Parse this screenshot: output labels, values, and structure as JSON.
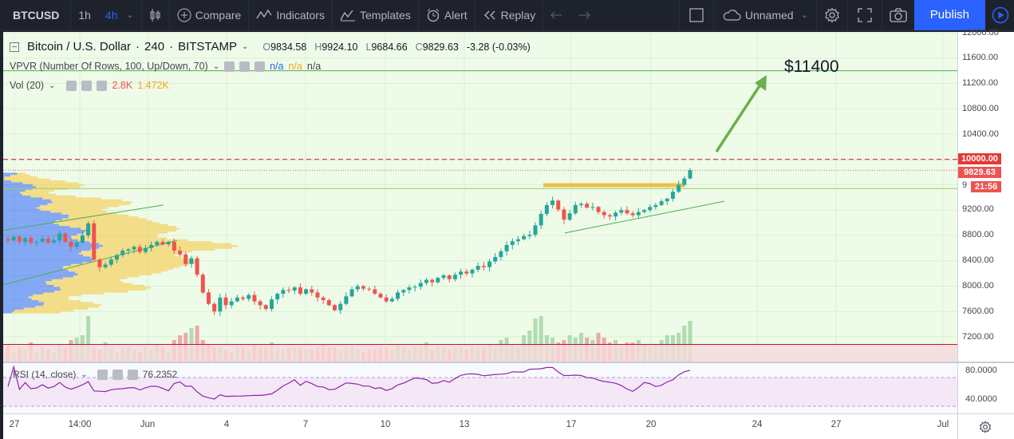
{
  "toolbar": {
    "symbol": "BTCUSD",
    "interval_1h": "1h",
    "interval_4h": "4h",
    "compare": "Compare",
    "indicators": "Indicators",
    "templates": "Templates",
    "alert": "Alert",
    "replay": "Replay",
    "layout_name": "Unnamed",
    "publish": "Publish"
  },
  "legend": {
    "title": "Bitcoin / U.S. Dollar",
    "interval": "240",
    "exchange": "BITSTAMP",
    "open_lbl": "O",
    "open": "9834.58",
    "high_lbl": "H",
    "high": "9924.10",
    "low_lbl": "L",
    "low": "9684.66",
    "close_lbl": "C",
    "close": "9829.63",
    "change": "-3.28 (-0.03%)",
    "vpvr": "VPVR (Number Of Rows, 100, Up/Down, 70)",
    "vpvr_v1": "n/a",
    "vpvr_v2": "n/a",
    "vpvr_v3": "n/a",
    "vol": "Vol (20)",
    "vol_v1": "2.8K",
    "vol_v2": "1.472K",
    "rsi": "RSI (14, close)",
    "rsi_value": "76.2352"
  },
  "price_axis": {
    "labels": [
      "12000.00",
      "11600.00",
      "11200.00",
      "10800.00",
      "10400.00",
      "9200.00",
      "8800.00",
      "8400.00",
      "8000.00",
      "7600.00",
      "7200.00"
    ],
    "tag_level": "10000.00",
    "tag_last": "9829.63",
    "tag_countdown": "21:56",
    "partial": "9"
  },
  "rsi_axis": {
    "labels": [
      "80.0000",
      "40.0000"
    ]
  },
  "time_axis": {
    "labels": [
      "27",
      "14:00",
      "Jun",
      "4",
      "7",
      "10",
      "13",
      "17",
      "20",
      "24",
      "27",
      "Jul"
    ]
  },
  "annotation": {
    "target": "$11400"
  },
  "colors": {
    "up": "#26a69a",
    "down": "#ef5350",
    "chart_bg": "#eefbe8",
    "accent": "#2962ff",
    "level_line": "#c8102e",
    "hline": "#4caf50",
    "arrow": "#6ab04c",
    "rsi": "#8e24aa"
  },
  "icons": {
    "bars": "candlestyle-icon",
    "compare": "plus-circle-icon",
    "indicators": "indicators-icon",
    "templates": "templates-icon",
    "alert": "alarm-clock-icon",
    "replay": "rewind-icon",
    "undo": "undo-icon",
    "redo": "redo-icon",
    "layout": "layout-square-icon",
    "cloud": "cloud-icon",
    "settings": "gear-icon",
    "fullscreen": "fullscreen-icon",
    "snapshot": "camera-icon",
    "play": "play-circle-icon",
    "time_settings": "gear-icon"
  },
  "chart_data": {
    "type": "candlestick",
    "symbol": "BTCUSD",
    "interval": "240",
    "ylim": [
      7000,
      12100
    ],
    "last": {
      "open": 9834.58,
      "high": 9924.1,
      "low": 9684.66,
      "close": 9829.63
    },
    "horizontal_levels": [
      11400,
      10000,
      9829.63,
      9540
    ],
    "projection_target": 11400,
    "rsi_last": 76.2352,
    "rsi_bands": [
      70,
      30
    ],
    "closes": [
      8720,
      8780,
      8700,
      8760,
      8690,
      8700,
      8750,
      8690,
      8720,
      8830,
      8700,
      8620,
      8690,
      8800,
      8990,
      8420,
      8300,
      8340,
      8420,
      8490,
      8560,
      8580,
      8620,
      8540,
      8600,
      8650,
      8700,
      8660,
      8700,
      8560,
      8500,
      8350,
      8440,
      8180,
      7900,
      7720,
      7600,
      7820,
      7700,
      7760,
      7820,
      7800,
      7860,
      7760,
      7700,
      7640,
      7790,
      7880,
      7940,
      7930,
      7980,
      7880,
      7950,
      7900,
      7820,
      7780,
      7700,
      7620,
      7720,
      7840,
      7950,
      8000,
      7960,
      7950,
      7880,
      7820,
      7760,
      7800,
      7900,
      7940,
      7980,
      7990,
      8050,
      8100,
      8060,
      8130,
      8170,
      8110,
      8180,
      8230,
      8200,
      8260,
      8320,
      8300,
      8390,
      8460,
      8550,
      8650,
      8710,
      8740,
      8790,
      8810,
      8960,
      9140,
      9280,
      9350,
      9210,
      9050,
      9150,
      9280,
      9300,
      9240,
      9250,
      9170,
      9120,
      9100,
      9160,
      9200,
      9150,
      9120,
      9170,
      9200,
      9250,
      9280,
      9340,
      9380,
      9490,
      9600,
      9700,
      9830
    ],
    "volumes": [
      0.35,
      0.2,
      0.3,
      0.25,
      0.4,
      0.2,
      0.3,
      0.25,
      0.2,
      0.35,
      0.3,
      0.45,
      0.5,
      0.55,
      0.95,
      0.3,
      0.25,
      0.4,
      0.3,
      0.2,
      0.3,
      0.3,
      0.25,
      0.2,
      0.3,
      0.25,
      0.35,
      0.3,
      0.2,
      0.45,
      0.55,
      0.6,
      0.7,
      0.75,
      0.45,
      0.35,
      0.3,
      0.3,
      0.25,
      0.2,
      0.3,
      0.3,
      0.25,
      0.35,
      0.3,
      0.3,
      0.4,
      0.3,
      0.25,
      0.3,
      0.3,
      0.3,
      0.25,
      0.25,
      0.3,
      0.35,
      0.3,
      0.3,
      0.25,
      0.3,
      0.3,
      0.25,
      0.2,
      0.25,
      0.25,
      0.3,
      0.3,
      0.25,
      0.35,
      0.3,
      0.25,
      0.3,
      0.3,
      0.4,
      0.25,
      0.3,
      0.3,
      0.25,
      0.3,
      0.3,
      0.25,
      0.3,
      0.3,
      0.3,
      0.35,
      0.3,
      0.45,
      0.5,
      0.35,
      0.3,
      0.55,
      0.65,
      0.9,
      0.95,
      0.55,
      0.5,
      0.4,
      0.45,
      0.55,
      0.5,
      0.6,
      0.5,
      0.45,
      0.6,
      0.5,
      0.4,
      0.45,
      0.35,
      0.4,
      0.4,
      0.45,
      0.35,
      0.3,
      0.35,
      0.45,
      0.55,
      0.55,
      0.6,
      0.75,
      0.85
    ]
  }
}
